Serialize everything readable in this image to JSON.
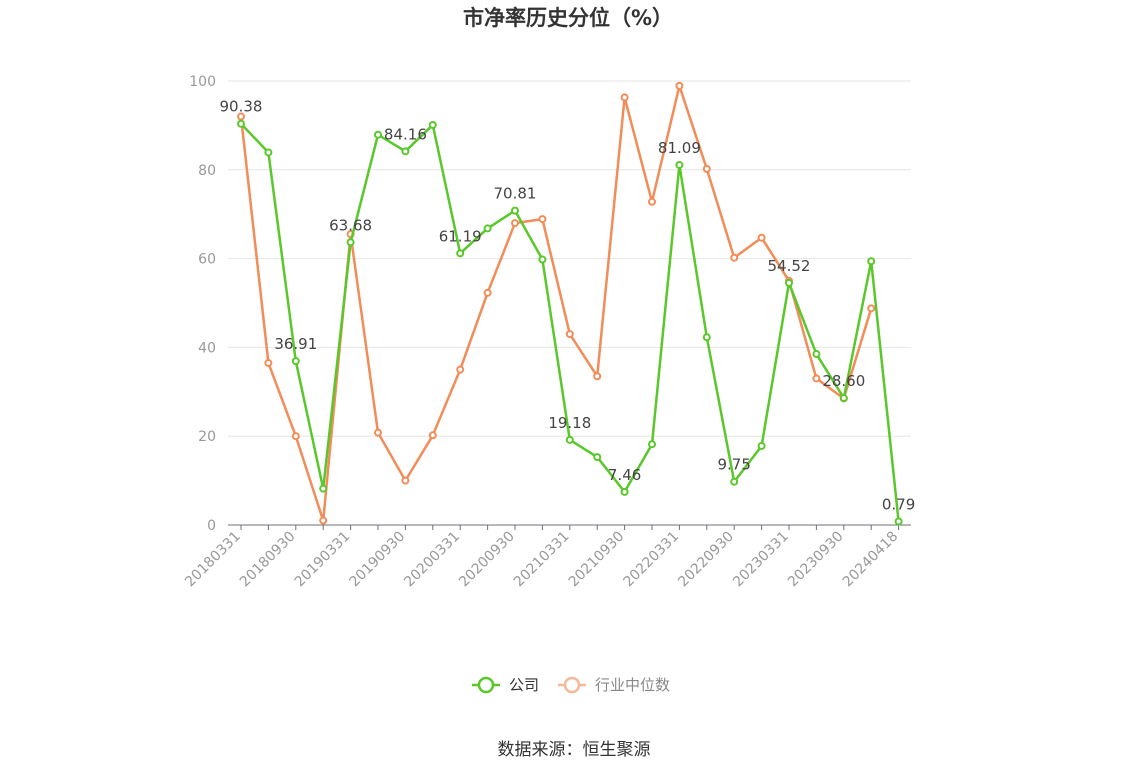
{
  "chart_data": {
    "type": "line",
    "title": "市净率历史分位（%）",
    "ylim": [
      0,
      100
    ],
    "y_ticks": [
      "0",
      "20",
      "40",
      "60",
      "80",
      "100"
    ],
    "x_tick_labels": [
      "20180331",
      "20180930",
      "20190331",
      "20190930",
      "20200331",
      "20200930",
      "20210331",
      "20210930",
      "20220331",
      "20220930",
      "20230331",
      "20230930",
      "20240418"
    ],
    "x": [
      "20180331",
      "20180630",
      "20180930",
      "20181231",
      "20190331",
      "20190630",
      "20190930",
      "20191231",
      "20200331",
      "20200630",
      "20200930",
      "20201231",
      "20210331",
      "20210630",
      "20210930",
      "20211231",
      "20220331",
      "20220630",
      "20220930",
      "20221231",
      "20230331",
      "20230630",
      "20230930",
      "20231231",
      "20240418"
    ],
    "series": [
      {
        "name": "公司",
        "color": "#5ac72b",
        "values": [
          90.38,
          83.9,
          36.91,
          8.2,
          63.68,
          87.9,
          84.16,
          90.1,
          61.19,
          66.8,
          70.81,
          59.8,
          19.18,
          15.3,
          7.46,
          18.2,
          81.09,
          42.3,
          9.75,
          17.8,
          54.52,
          38.5,
          28.6,
          59.4,
          0.79
        ]
      },
      {
        "name": "行业中位数",
        "color": "#f28c58",
        "values": [
          92.0,
          36.5,
          20.0,
          1.0,
          65.5,
          20.8,
          10.0,
          20.2,
          35.0,
          52.3,
          68.0,
          68.9,
          43.0,
          33.5,
          96.3,
          72.8,
          98.9,
          80.2,
          60.2,
          64.7,
          55.0,
          33.0,
          28.5,
          48.8,
          null
        ]
      }
    ],
    "data_labels": [
      {
        "index": 0,
        "text": "90.38"
      },
      {
        "index": 2,
        "text": "36.91"
      },
      {
        "index": 4,
        "text": "63.68"
      },
      {
        "index": 6,
        "text": "84.16"
      },
      {
        "index": 8,
        "text": "61.19"
      },
      {
        "index": 10,
        "text": "70.81"
      },
      {
        "index": 12,
        "text": "19.18"
      },
      {
        "index": 14,
        "text": "7.46"
      },
      {
        "index": 16,
        "text": "81.09"
      },
      {
        "index": 18,
        "text": "9.75"
      },
      {
        "index": 20,
        "text": "54.52"
      },
      {
        "index": 22,
        "text": "28.60"
      },
      {
        "index": 24,
        "text": "0.79"
      }
    ],
    "legend": [
      "公司",
      "行业中位数"
    ],
    "legend_position": "bottom-center",
    "grid": true
  },
  "source": "数据来源：恒生聚源"
}
